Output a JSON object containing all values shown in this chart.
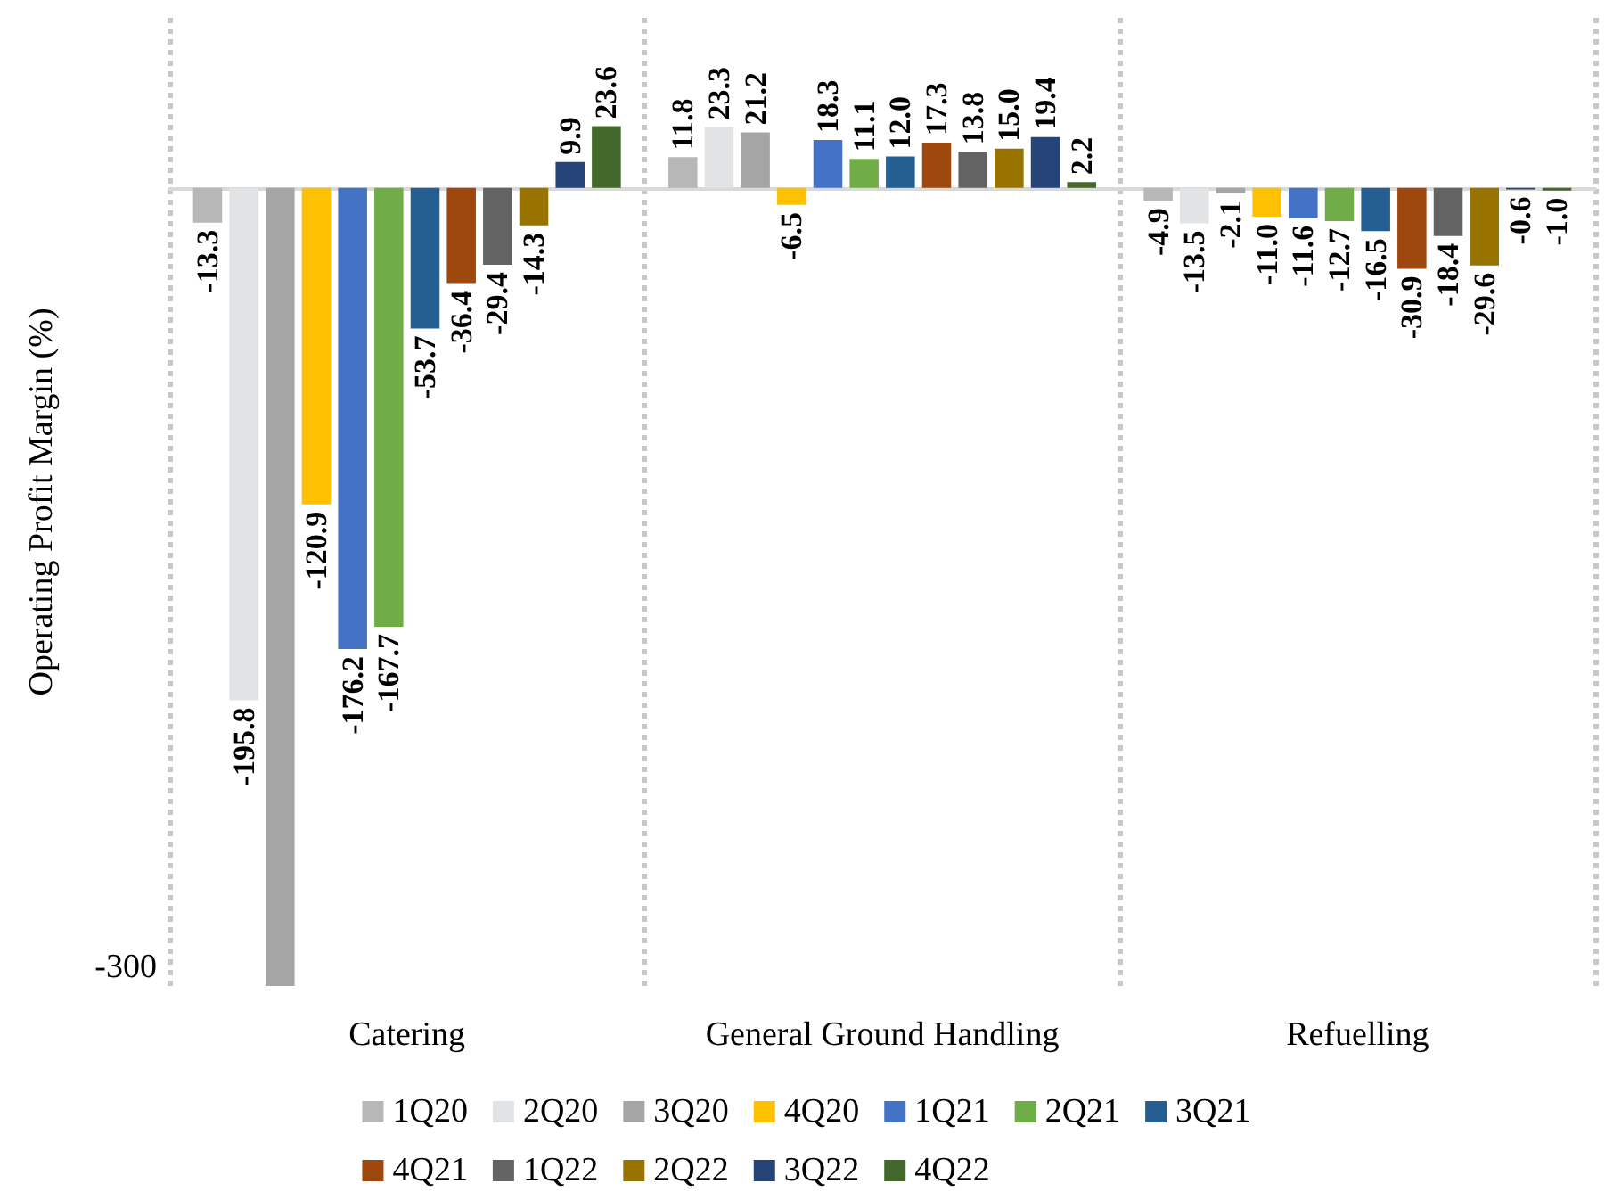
{
  "chart_data": {
    "type": "bar",
    "ylabel": "Operating Profit Margin (%)",
    "categories": [
      "Catering",
      "General Ground Handling",
      "Refuelling"
    ],
    "ylim": [
      -305,
      65
    ],
    "annotations": [
      "-300"
    ],
    "grid": "x",
    "legend": "bottom",
    "series": [
      {
        "name": "1Q20",
        "color": "#b7b7b7",
        "values": [
          -13.3,
          11.8,
          -4.9
        ],
        "value_labels": [
          "-13.3",
          "11.8",
          "-4.9"
        ]
      },
      {
        "name": "2Q20",
        "color": "#e2e3e5",
        "values": [
          -195.8,
          23.3,
          -13.5
        ],
        "value_labels": [
          "-195.8",
          "23.3",
          "-13.5"
        ]
      },
      {
        "name": "3Q20",
        "color": "#a5a5a5",
        "values": [
          -305,
          21.2,
          -2.1
        ],
        "value_labels": [
          null,
          "21.2",
          "-2.1"
        ]
      },
      {
        "name": "4Q20",
        "color": "#ffc000",
        "values": [
          -120.9,
          -6.5,
          -11.0
        ],
        "value_labels": [
          "-120.9",
          "-6.5",
          "-11.0"
        ]
      },
      {
        "name": "1Q21",
        "color": "#4472c4",
        "values": [
          -176.2,
          18.3,
          -11.6
        ],
        "value_labels": [
          "-176.2",
          "18.3",
          "-11.6"
        ]
      },
      {
        "name": "2Q21",
        "color": "#70ad47",
        "values": [
          -167.7,
          11.1,
          -12.7
        ],
        "value_labels": [
          "-167.7",
          "11.1",
          "-12.7"
        ]
      },
      {
        "name": "3Q21",
        "color": "#255e91",
        "values": [
          -53.7,
          12.0,
          -16.5
        ],
        "value_labels": [
          "-53.7",
          "12.0",
          "-16.5"
        ]
      },
      {
        "name": "4Q21",
        "color": "#9e480e",
        "values": [
          -36.4,
          17.3,
          -30.9
        ],
        "value_labels": [
          "-36.4",
          "17.3",
          "-30.9"
        ]
      },
      {
        "name": "1Q22",
        "color": "#636363",
        "values": [
          -29.4,
          13.8,
          -18.4
        ],
        "value_labels": [
          "-29.4",
          "13.8",
          "-18.4"
        ]
      },
      {
        "name": "2Q22",
        "color": "#997300",
        "values": [
          -14.3,
          15.0,
          -29.6
        ],
        "value_labels": [
          "-14.3",
          "15.0",
          "-29.6"
        ]
      },
      {
        "name": "3Q22",
        "color": "#264478",
        "values": [
          9.9,
          19.4,
          -0.6
        ],
        "value_labels": [
          "9.9",
          "19.4",
          "-0.6"
        ]
      },
      {
        "name": "4Q22",
        "color": "#43682b",
        "values": [
          23.6,
          2.2,
          -1.0
        ],
        "value_labels": [
          "23.6",
          "2.2",
          "-1.0"
        ]
      }
    ]
  }
}
